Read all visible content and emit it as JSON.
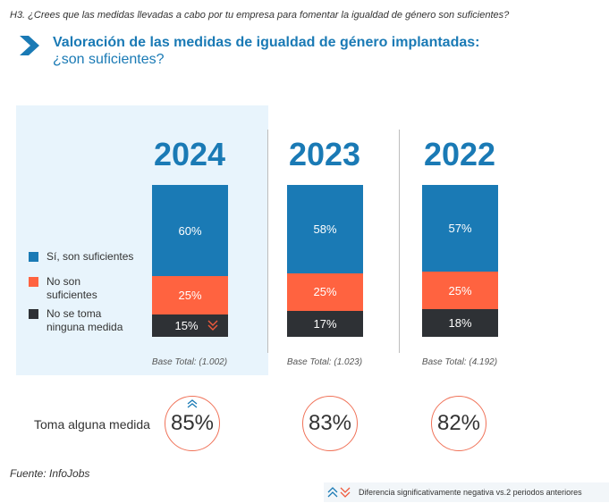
{
  "question": "H3. ¿Crees que las medidas llevadas a cabo por tu empresa para fomentar la igualdad de género son suficientes?",
  "title": {
    "main": "Valoración de las medidas de igualdad de género implantadas:",
    "sub": "¿son suficientes?",
    "icon": "chevron-right-icon"
  },
  "colors": {
    "accent": "#1a7ab5",
    "si": "#1a7ab5",
    "no": "#ff6340",
    "ninguna": "#2e3135",
    "panel": "#e8f4fc",
    "circle_border": "#f07258"
  },
  "legend": [
    {
      "label": "Sí, son suficientes",
      "color": "#1a7ab5"
    },
    {
      "label": "No son suficientes",
      "color": "#ff6340"
    },
    {
      "label": "No se toma ninguna medida",
      "color": "#2e3135"
    }
  ],
  "legend_lines": {
    "si": [
      "Sí, son suficientes"
    ],
    "no": [
      "No son",
      "suficientes"
    ],
    "ninguna": [
      "No se toma",
      "ninguna medida"
    ]
  },
  "chart_data": {
    "type": "bar",
    "stacked": true,
    "title": "Valoración de las medidas de igualdad de género implantadas: ¿son suficientes?",
    "categories": [
      "2024",
      "2023",
      "2022"
    ],
    "series": [
      {
        "name": "Sí, son suficientes",
        "values": [
          60,
          58,
          57
        ]
      },
      {
        "name": "No son suficientes",
        "values": [
          25,
          25,
          25
        ]
      },
      {
        "name": "No se toma ninguna medida",
        "values": [
          15,
          17,
          18
        ]
      }
    ],
    "labels": [
      [
        "60%",
        "25%",
        "15%"
      ],
      [
        "58%",
        "25%",
        "17%"
      ],
      [
        "57%",
        "25%",
        "18%"
      ]
    ],
    "base_totals": [
      "Base Total: (1.002)",
      "Base Total: (1.023)",
      "Base Total: (4.192)"
    ],
    "significance": {
      "2024": {
        "No se toma ninguna medida": "negative"
      }
    },
    "ylim": [
      0,
      100
    ],
    "legend_position": "left",
    "xlabel": "",
    "ylabel": ""
  },
  "toma_alguna_medida": {
    "label": "Toma alguna medida",
    "values": [
      "85%",
      "83%",
      "82%"
    ],
    "significance_2024": "positive"
  },
  "source": "Fuente: InfoJobs",
  "note": {
    "text": "Diferencia significativamente negativa vs.2 periodos anteriores",
    "icons": [
      "up-chevron-icon",
      "down-chevron-icon"
    ]
  }
}
